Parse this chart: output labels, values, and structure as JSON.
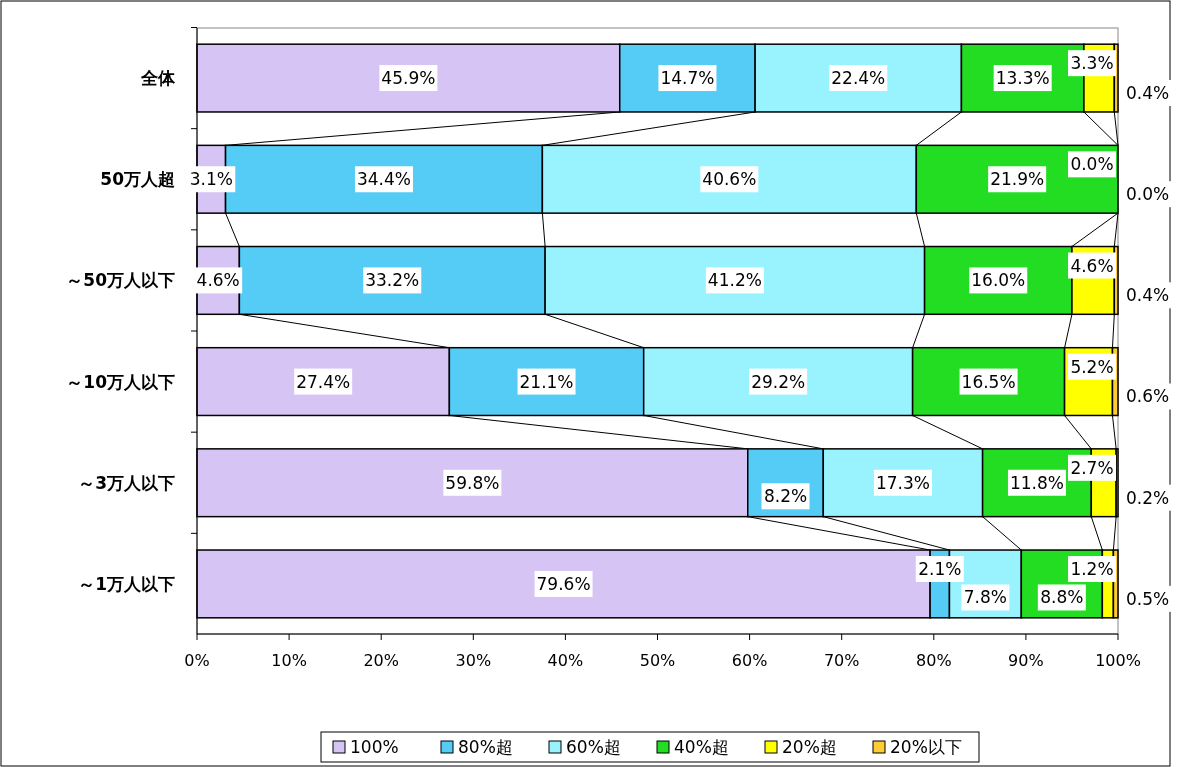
{
  "chart_data": {
    "type": "bar",
    "orientation": "horizontal",
    "stacked": true,
    "categories": [
      "全体",
      "50万人超",
      "～50万人以下",
      "～10万人以下",
      "～3万人以下",
      "～1万人以下"
    ],
    "series": [
      {
        "name": "100%",
        "color": "#d6c4f5",
        "values": [
          45.9,
          3.1,
          4.6,
          27.4,
          59.8,
          79.6
        ],
        "value_labels": [
          "45.9%",
          "3.1%",
          "4.6%",
          "27.4%",
          "59.8%",
          "79.6%"
        ]
      },
      {
        "name": "80%超",
        "color": "#55ccf5",
        "values": [
          14.7,
          34.4,
          33.2,
          21.1,
          8.2,
          2.1
        ],
        "value_labels": [
          "14.7%",
          "34.4%",
          "33.2%",
          "21.1%",
          "8.2%",
          "2.1%"
        ]
      },
      {
        "name": "60%超",
        "color": "#99f3ff",
        "values": [
          22.4,
          40.6,
          41.2,
          29.2,
          17.3,
          7.8
        ],
        "value_labels": [
          "22.4%",
          "40.6%",
          "41.2%",
          "29.2%",
          "17.3%",
          "7.8%"
        ]
      },
      {
        "name": "40%超",
        "color": "#22dd22",
        "values": [
          13.3,
          21.9,
          16.0,
          16.5,
          11.8,
          8.8
        ],
        "value_labels": [
          "13.3%",
          "21.9%",
          "16.0%",
          "16.5%",
          "11.8%",
          "8.8%"
        ]
      },
      {
        "name": "20%超",
        "color": "#ffff00",
        "values": [
          3.3,
          0.0,
          4.6,
          5.2,
          2.7,
          1.2
        ],
        "value_labels": [
          "3.3%",
          "0.0%",
          "4.6%",
          "5.2%",
          "2.7%",
          "1.2%"
        ]
      },
      {
        "name": "20%以下",
        "color": "#ffcc33",
        "values": [
          0.4,
          0.0,
          0.4,
          0.6,
          0.2,
          0.5
        ],
        "value_labels": [
          "0.4%",
          "0.0%",
          "0.4%",
          "0.6%",
          "0.2%",
          "0.5%"
        ]
      }
    ],
    "xlim": [
      0,
      100
    ],
    "xticks": [
      {
        "value": 0,
        "label": "0%"
      },
      {
        "value": 10,
        "label": "10%"
      },
      {
        "value": 20,
        "label": "20%"
      },
      {
        "value": 30,
        "label": "30%"
      },
      {
        "value": 40,
        "label": "40%"
      },
      {
        "value": 50,
        "label": "50%"
      },
      {
        "value": 60,
        "label": "60%"
      },
      {
        "value": 70,
        "label": "70%"
      },
      {
        "value": 80,
        "label": "80%"
      },
      {
        "value": 90,
        "label": "90%"
      },
      {
        "value": 100,
        "label": "100%"
      }
    ],
    "grid": false,
    "legend": "bottom"
  }
}
